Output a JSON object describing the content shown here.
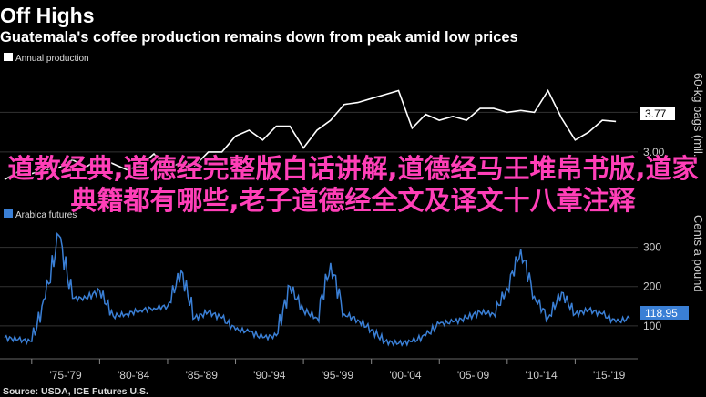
{
  "header": {
    "title": "Off Highs",
    "subtitle": "Guatemala's coffee production remains down from peak amid low prices"
  },
  "overlay_text": "道教经典,道德经完整版白话讲解,道德经马王堆帛书版,道家典籍都有哪些,老子道德经全文及译文十八章注释",
  "source": "Source: USDA, ICE Futures U.S.",
  "colors": {
    "background": "#000000",
    "production_line": "#ffffff",
    "futures_line": "#3a7fd5",
    "grid": "#3a3a3a",
    "overlay": "#ff3fb8"
  },
  "chart_data": [
    {
      "type": "line",
      "legend": "Annual production",
      "ylabel": "60-kg bags (mil...",
      "yticks": [
        "3.00",
        "4.00"
      ],
      "ylim": [
        1.5,
        5.0
      ],
      "last_value_label": "3.77",
      "x": [
        1973,
        1974,
        1975,
        1976,
        1977,
        1978,
        1979,
        1980,
        1981,
        1982,
        1983,
        1984,
        1985,
        1986,
        1987,
        1988,
        1989,
        1990,
        1991,
        1992,
        1993,
        1994,
        1995,
        1996,
        1997,
        1998,
        1999,
        2000,
        2001,
        2002,
        2003,
        2004,
        2005,
        2006,
        2007,
        2008,
        2009,
        2010,
        2011,
        2012,
        2013,
        2014,
        2015,
        2016,
        2017,
        2018
      ],
      "values": [
        2.3,
        2.5,
        2.45,
        2.55,
        2.6,
        2.8,
        2.62,
        2.85,
        2.7,
        2.55,
        2.65,
        2.95,
        2.55,
        2.75,
        2.65,
        3.0,
        3.0,
        3.4,
        3.55,
        3.3,
        3.65,
        3.65,
        3.1,
        3.55,
        3.8,
        4.2,
        4.25,
        4.35,
        4.45,
        4.55,
        3.6,
        3.95,
        3.8,
        3.9,
        3.8,
        4.1,
        4.1,
        4.0,
        4.05,
        4.0,
        4.55,
        3.85,
        3.3,
        3.5,
        3.8,
        3.77
      ]
    },
    {
      "type": "line",
      "legend": "Arabica futures",
      "ylabel": "Cents a pound",
      "yticks": [
        "100",
        "200",
        "300"
      ],
      "ylim": [
        30,
        350
      ],
      "last_value_label": "118.95",
      "x": [
        1973,
        1974,
        1975,
        1976,
        1977,
        1978,
        1979,
        1980,
        1981,
        1982,
        1983,
        1984,
        1985,
        1986,
        1987,
        1988,
        1989,
        1990,
        1991,
        1992,
        1993,
        1994,
        1995,
        1996,
        1997,
        1998,
        1999,
        2000,
        2001,
        2002,
        2003,
        2004,
        2005,
        2006,
        2007,
        2008,
        2009,
        2010,
        2011,
        2012,
        2013,
        2014,
        2015,
        2016,
        2017,
        2018,
        2019
      ],
      "values": [
        70,
        65,
        60,
        170,
        330,
        170,
        170,
        190,
        125,
        130,
        140,
        145,
        150,
        240,
        120,
        135,
        120,
        90,
        85,
        70,
        75,
        200,
        140,
        120,
        260,
        130,
        115,
        90,
        60,
        55,
        60,
        75,
        105,
        110,
        120,
        135,
        130,
        195,
        295,
        175,
        120,
        185,
        130,
        140,
        130,
        110,
        118.95
      ],
      "xticks": [
        "'75-'79",
        "'80-'84",
        "'85-'89",
        "'90-'94",
        "'95-'99",
        "'00-'04",
        "'05-'09",
        "'10-'14",
        "'15-'19"
      ]
    }
  ]
}
